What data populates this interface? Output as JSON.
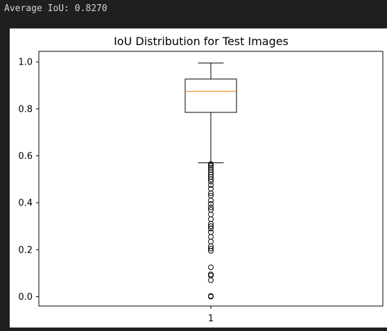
{
  "console": {
    "output_line": "Average IoU: 0.8270"
  },
  "chart_data": {
    "type": "boxplot",
    "title": "IoU Distribution for Test Images",
    "xlabel": "",
    "ylabel": "",
    "categories": [
      "1"
    ],
    "ylim": [
      -0.04,
      1.045
    ],
    "yticks": [
      0.0,
      0.2,
      0.4,
      0.6,
      0.8,
      1.0
    ],
    "ytick_labels": [
      "0.0",
      "0.2",
      "0.4",
      "0.6",
      "0.8",
      "1.0"
    ],
    "box": {
      "whisker_low": 0.57,
      "q1": 0.785,
      "median": 0.875,
      "q3": 0.927,
      "whisker_high": 0.995
    },
    "outliers": [
      0.565,
      0.558,
      0.55,
      0.54,
      0.53,
      0.52,
      0.51,
      0.5,
      0.49,
      0.475,
      0.46,
      0.44,
      0.43,
      0.41,
      0.395,
      0.38,
      0.37,
      0.35,
      0.33,
      0.31,
      0.3,
      0.29,
      0.275,
      0.255,
      0.235,
      0.215,
      0.205,
      0.195,
      0.125,
      0.095,
      0.09,
      0.07,
      0.003,
      0.0
    ],
    "colors": {
      "box": "#000000",
      "median": "#ff7f0e",
      "background": "#ffffff",
      "console_bg": "#1f1f1f",
      "console_text": "#d4d4d4"
    }
  }
}
